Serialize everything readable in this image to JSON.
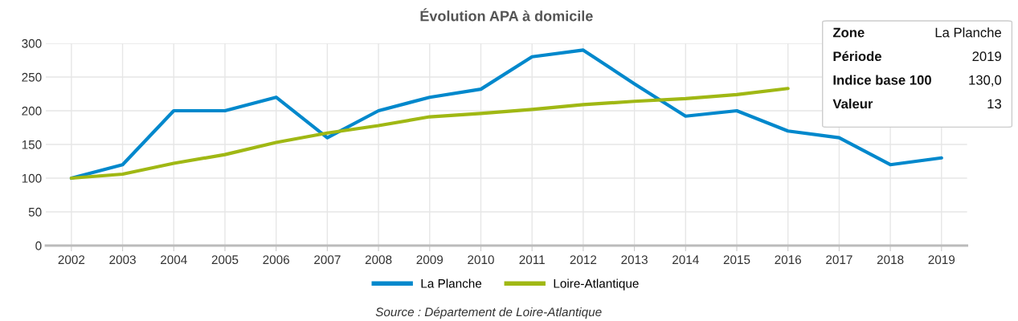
{
  "chart_data": {
    "type": "line",
    "title": "Évolution APA à domicile",
    "categories": [
      "2002",
      "2003",
      "2004",
      "2005",
      "2006",
      "2007",
      "2008",
      "2009",
      "2010",
      "2011",
      "2012",
      "2013",
      "2014",
      "2015",
      "2016",
      "2017",
      "2018",
      "2019"
    ],
    "series": [
      {
        "name": "La Planche",
        "color": "#0088cc",
        "values": [
          100,
          120,
          200,
          200,
          220,
          160,
          200,
          220,
          232,
          280,
          290,
          240,
          192,
          200,
          170,
          160,
          120,
          130
        ]
      },
      {
        "name": "Loire-Atlantique",
        "color": "#a0b814",
        "values": [
          100,
          106,
          122,
          135,
          153,
          167,
          178,
          191,
          196,
          202,
          209,
          214,
          218,
          224,
          233,
          null,
          null,
          null
        ]
      }
    ],
    "ylim": [
      0,
      300
    ],
    "yticks": [
      0,
      50,
      100,
      150,
      200,
      250,
      300
    ],
    "grid": true,
    "legend": "bottom",
    "marker": "none",
    "line_style": "solid",
    "annotations": [
      "Source : Département de Loire-Atlantique",
      "Zone",
      "La Planche",
      "Période",
      "2019",
      "Indice base 100",
      "130,0",
      "Valeur",
      "13"
    ]
  }
}
